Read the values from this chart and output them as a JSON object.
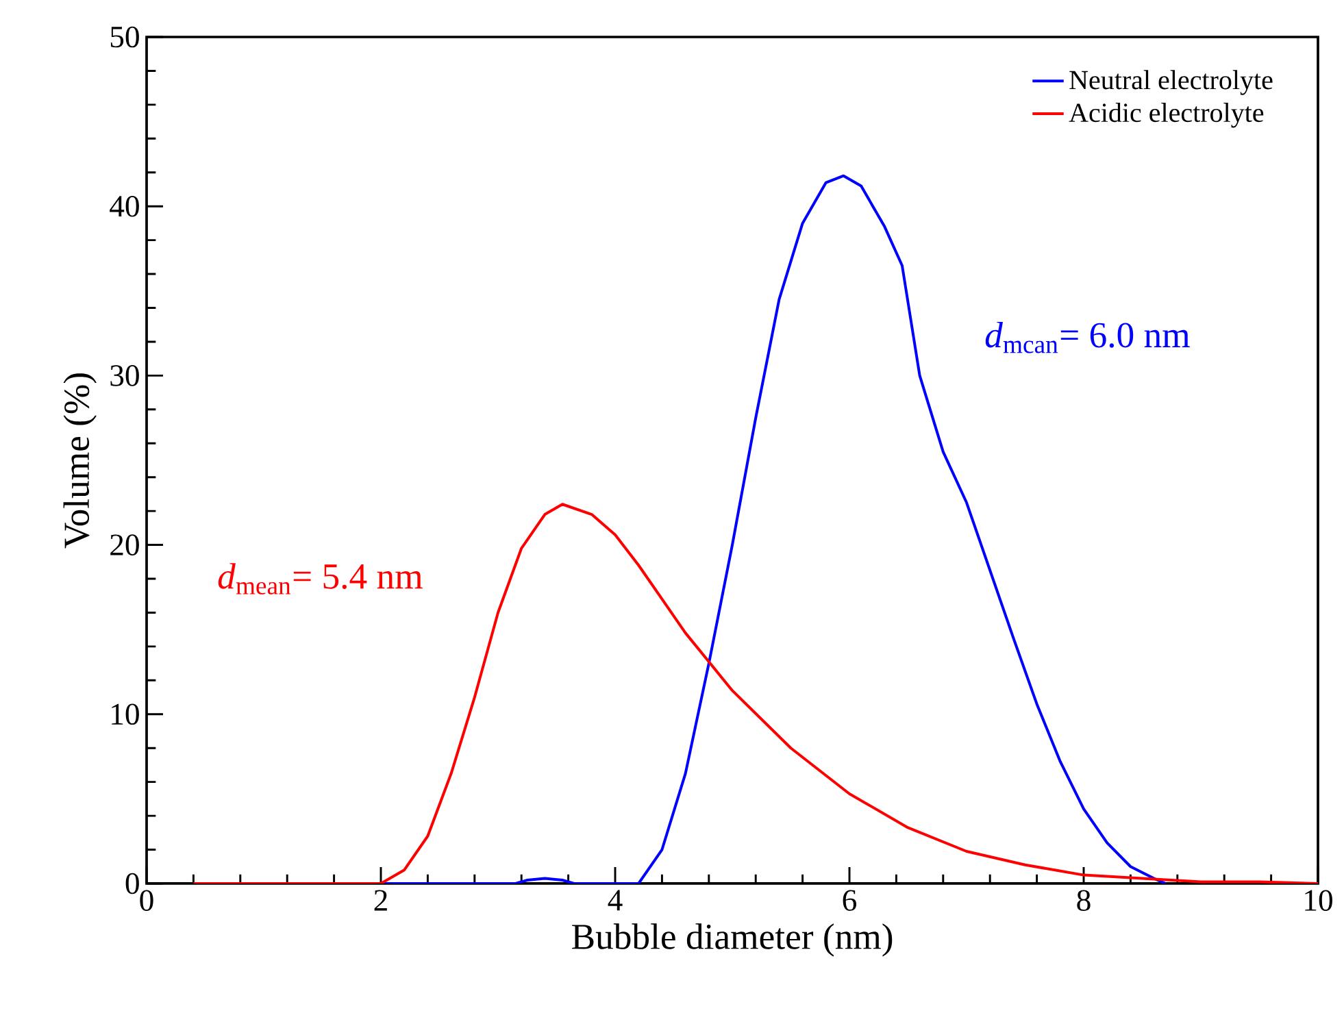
{
  "chart_data": {
    "type": "line",
    "xlabel": "Bubble diameter (nm)",
    "ylabel": "Volume (%)",
    "xlim": [
      0,
      10
    ],
    "ylim": [
      0,
      50
    ],
    "xticks": [
      0,
      2,
      4,
      6,
      8,
      10
    ],
    "yticks": [
      0,
      10,
      20,
      30,
      40,
      50
    ],
    "legend": "top right",
    "grid": false,
    "marker": "none",
    "line_style": "solid",
    "series": [
      {
        "name": "Neutral electrolyte",
        "color": "#0000ff",
        "x": [
          1.52,
          3.15,
          3.25,
          3.4,
          3.55,
          3.65,
          4.2,
          4.4,
          4.6,
          4.8,
          5.0,
          5.2,
          5.4,
          5.6,
          5.8,
          5.95,
          6.1,
          6.3,
          6.45,
          6.6,
          6.8,
          7.0,
          7.2,
          7.4,
          7.6,
          7.8,
          8.0,
          8.2,
          8.4,
          8.6,
          8.7
        ],
        "values": [
          0,
          0,
          0.2,
          0.3,
          0.2,
          0,
          0,
          2,
          6.5,
          13,
          20,
          27.5,
          34.5,
          39,
          41.4,
          41.8,
          41.2,
          38.8,
          36.5,
          30,
          25.5,
          22.5,
          18.5,
          14.5,
          10.6,
          7.2,
          4.4,
          2.4,
          1.0,
          0.3,
          0
        ]
      },
      {
        "name": "Acidic electrolyte",
        "color": "#ff0000",
        "x": [
          0.4,
          2.0,
          2.2,
          2.4,
          2.6,
          2.8,
          3.0,
          3.2,
          3.4,
          3.55,
          3.8,
          4.0,
          4.2,
          4.4,
          4.6,
          4.8,
          5.0,
          5.5,
          6.0,
          6.5,
          7.0,
          7.5,
          8.0,
          8.5,
          9.0,
          9.5,
          10
        ],
        "values": [
          0,
          0,
          0.8,
          2.8,
          6.5,
          11,
          16,
          19.8,
          21.8,
          22.4,
          21.8,
          20.6,
          18.8,
          16.8,
          14.8,
          13.1,
          11.4,
          8.0,
          5.3,
          3.3,
          1.9,
          1.1,
          0.5,
          0.3,
          0.1,
          0.1,
          0
        ]
      }
    ],
    "annotations": [
      "*d*$_{mean}$= 5.4 nm",
      "*d*$_{mcan}$= 6.0 nm"
    ]
  }
}
